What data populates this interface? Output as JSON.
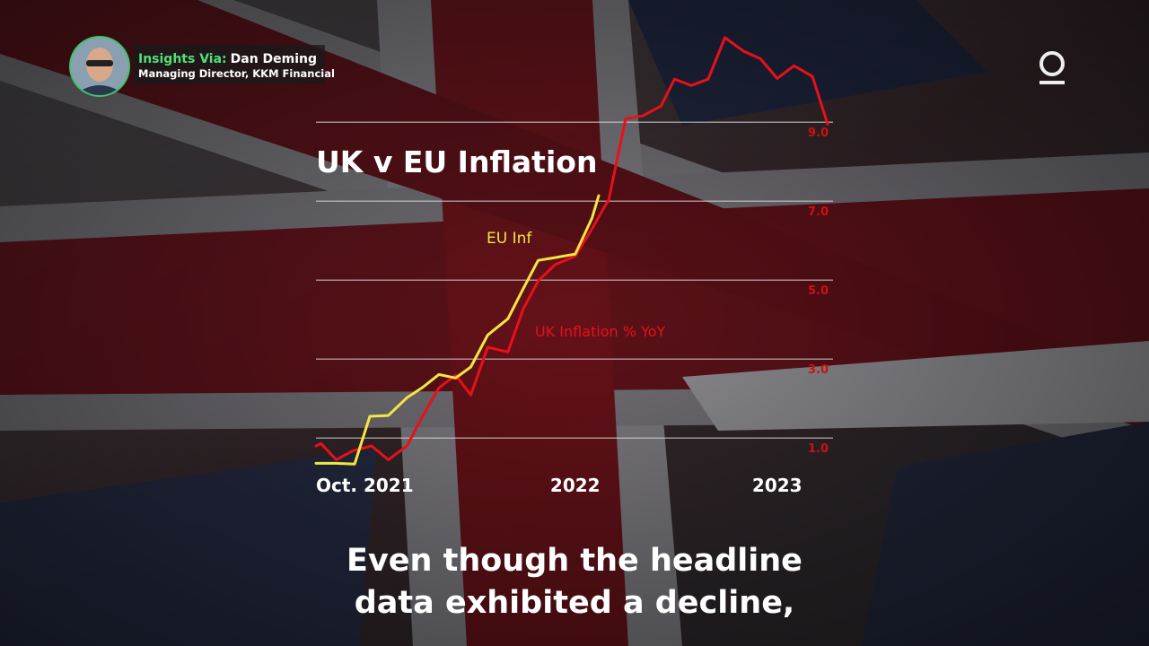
{
  "presenter": {
    "prefix": "Insights Via:",
    "name": "Dan Deming",
    "role": "Managing Director, KKM Financial"
  },
  "caption": [
    "Even though the headline",
    "data exhibited a decline,"
  ],
  "chart_data": {
    "type": "line",
    "title": "UK v EU Inflation",
    "xlim": [
      0,
      30.4
    ],
    "ylim": [
      0.3,
      11.3
    ],
    "xticks": [
      {
        "value": 0,
        "label": "Oct. 2021"
      },
      {
        "value": 15.4,
        "label": "2022"
      },
      {
        "value": 27.4,
        "label": "2023"
      }
    ],
    "yticks": [
      {
        "value": 1,
        "label": "1.0"
      },
      {
        "value": 3,
        "label": "3.0"
      },
      {
        "value": 5,
        "label": "5.0"
      },
      {
        "value": 7,
        "label": "7.0"
      },
      {
        "value": 9,
        "label": "9.0"
      }
    ],
    "grid": true,
    "series": [
      {
        "name": "UK Inflation % YoY",
        "color": "#e8101a",
        "x": [
          0.0,
          0.3,
          1.2,
          2.2,
          3.3,
          4.3,
          5.4,
          6.3,
          7.3,
          8.3,
          9.2,
          10.2,
          11.4,
          12.3,
          13.2,
          14.2,
          15.4,
          16.4,
          17.4,
          18.4,
          19.4,
          20.5,
          21.3,
          22.3,
          23.3,
          24.3,
          25.4,
          26.4,
          27.4,
          28.4,
          29.5,
          30.4
        ],
        "values": [
          0.8,
          0.86,
          0.45,
          0.68,
          0.8,
          0.45,
          0.8,
          1.52,
          2.27,
          2.59,
          2.09,
          3.3,
          3.18,
          4.25,
          4.98,
          5.39,
          5.61,
          6.3,
          7.05,
          9.09,
          9.16,
          9.41,
          10.09,
          9.93,
          10.09,
          11.14,
          10.8,
          10.61,
          10.11,
          10.43,
          10.16,
          8.95
        ]
      },
      {
        "name": "EU Inf",
        "color": "#f4e542",
        "x": [
          0.0,
          1.2,
          2.3,
          3.2,
          4.3,
          5.4,
          6.3,
          7.3,
          8.3,
          9.2,
          10.2,
          11.4,
          12.3,
          13.2,
          14.2,
          15.4,
          16.4,
          16.8
        ],
        "values": [
          0.36,
          0.36,
          0.34,
          1.55,
          1.57,
          2.02,
          2.27,
          2.61,
          2.52,
          2.8,
          3.61,
          4.02,
          4.77,
          5.5,
          5.57,
          5.66,
          6.57,
          7.14
        ]
      }
    ]
  }
}
